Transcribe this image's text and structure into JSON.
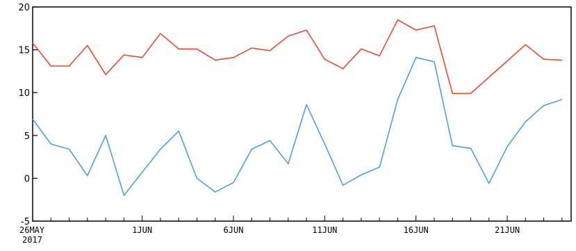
{
  "chart_data": {
    "type": "line",
    "title": "",
    "xlabel": "",
    "ylabel": "",
    "ylim": [
      -5,
      20
    ],
    "yticks": [
      "20",
      "15",
      "10",
      "5",
      "0",
      "-5"
    ],
    "xticks": [
      {
        "label": "26MAY",
        "sublabel": "2017",
        "day": 0
      },
      {
        "label": "1JUN",
        "day": 6
      },
      {
        "label": "6JUN",
        "day": 11
      },
      {
        "label": "11JUN",
        "day": 16
      },
      {
        "label": "16JUN",
        "day": 21
      },
      {
        "label": "21JUN",
        "day": 26
      }
    ],
    "x_start_date": "2017-05-26",
    "grid": false,
    "series": [
      {
        "color": "#f0472c",
        "values": [
          15.8,
          13.1,
          13.1,
          15.5,
          12.1,
          14.4,
          14.1,
          16.9,
          15.1,
          15.1,
          13.8,
          14.1,
          15.2,
          14.9,
          16.6,
          17.3,
          13.9,
          12.8,
          15.1,
          14.3,
          18.5,
          17.3,
          17.8,
          9.9,
          9.9,
          11.8,
          13.7,
          15.6,
          13.9,
          13.8
        ]
      },
      {
        "color": "#4c9fe5",
        "values": [
          6.9,
          4.0,
          3.4,
          0.3,
          5.0,
          -2.0,
          0.7,
          3.4,
          5.5,
          0.0,
          -1.6,
          -0.5,
          3.4,
          4.4,
          1.7,
          8.6,
          4.0,
          -0.8,
          0.4,
          1.3,
          9.2,
          14.1,
          13.6,
          3.8,
          3.5,
          -0.6,
          3.7,
          6.6,
          8.5,
          9.2
        ]
      }
    ]
  }
}
